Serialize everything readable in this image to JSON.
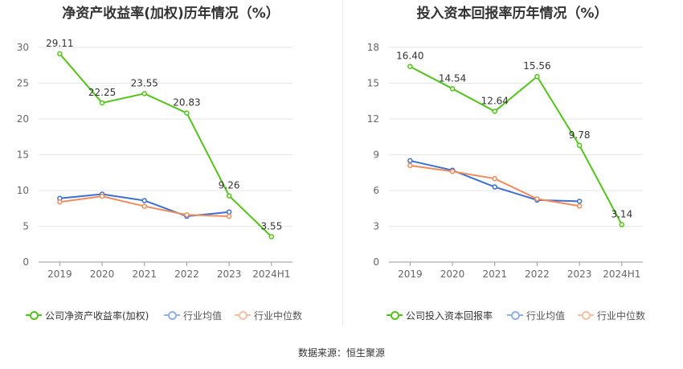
{
  "chart_data": [
    {
      "type": "line",
      "title": "净资产收益率(加权)历年情况（%）",
      "categories": [
        "2019",
        "2020",
        "2021",
        "2022",
        "2023",
        "2024H1"
      ],
      "ylim": [
        0,
        30
      ],
      "yticks": [
        "0",
        "5",
        "10",
        "15",
        "20",
        "25",
        "30"
      ],
      "grid": true,
      "legend": "bottom",
      "series": [
        {
          "name": "公司净资产收益率(加权)",
          "color": "#52c41a",
          "values": [
            29.11,
            22.25,
            23.55,
            20.83,
            9.26,
            3.55
          ],
          "labels": [
            "29.11",
            "22.25",
            "23.55",
            "20.83",
            "9.26",
            "3.55"
          ]
        },
        {
          "name": "行业均值",
          "color": "#3b6fd4",
          "values": [
            8.9,
            9.5,
            8.6,
            6.4,
            7.0,
            null
          ]
        },
        {
          "name": "行业中位数",
          "color": "#f08c5a",
          "values": [
            8.4,
            9.2,
            7.8,
            6.6,
            6.4,
            null
          ]
        }
      ]
    },
    {
      "type": "line",
      "title": "投入资本回报率历年情况（%）",
      "categories": [
        "2019",
        "2020",
        "2021",
        "2022",
        "2023",
        "2024H1"
      ],
      "ylim": [
        0,
        18
      ],
      "yticks": [
        "0",
        "3",
        "6",
        "9",
        "12",
        "15",
        "18"
      ],
      "grid": true,
      "legend": "bottom",
      "series": [
        {
          "name": "公司投入资本回报率",
          "color": "#52c41a",
          "values": [
            16.4,
            14.54,
            12.64,
            15.56,
            9.78,
            3.14
          ],
          "labels": [
            "16.40",
            "14.54",
            "12.64",
            "15.56",
            "9.78",
            "3.14"
          ]
        },
        {
          "name": "行业均值",
          "color": "#3b6fd4",
          "values": [
            8.5,
            7.7,
            6.3,
            5.2,
            5.1,
            null
          ]
        },
        {
          "name": "行业中位数",
          "color": "#f08c5a",
          "values": [
            8.1,
            7.6,
            7.0,
            5.3,
            4.7,
            null
          ]
        }
      ]
    }
  ],
  "source": "数据来源：恒生聚源"
}
